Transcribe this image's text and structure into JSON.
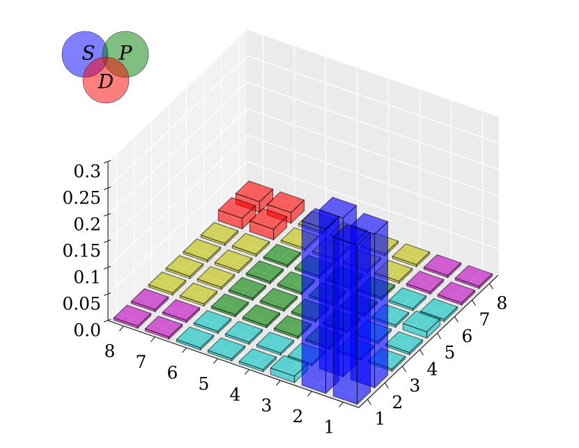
{
  "chart_data": {
    "type": "bar3d",
    "xticks": [
      1,
      2,
      3,
      4,
      5,
      6,
      7,
      8
    ],
    "yticks": [
      1,
      2,
      3,
      4,
      5,
      6,
      7,
      8
    ],
    "zlim": [
      0,
      0.3
    ],
    "zticks": [
      {
        "value": 0,
        "label": "0.0"
      },
      0.05,
      0.1,
      0.15,
      0.2,
      0.25,
      0.3
    ],
    "values": [
      [
        0.3,
        0.29,
        0.004,
        0.004,
        0.012,
        0.004,
        0.004,
        0.004
      ],
      [
        0.31,
        0.3,
        0.004,
        0.004,
        0.004,
        0.004,
        0.004,
        0.004
      ],
      [
        0.012,
        0.004,
        0.004,
        0.004,
        0.004,
        0.004,
        0.004,
        0.004
      ],
      [
        0.004,
        0.004,
        0.004,
        0.004,
        0.004,
        0.004,
        0.004,
        0.004
      ],
      [
        0.004,
        0.004,
        0.004,
        0.004,
        0.004,
        0.004,
        0.004,
        0.004
      ],
      [
        0.004,
        0.004,
        0.004,
        0.004,
        0.004,
        0.004,
        0.004,
        0.004
      ],
      [
        0.004,
        0.004,
        0.004,
        0.004,
        0.004,
        0.004,
        0.02,
        0.02
      ],
      [
        0.004,
        0.004,
        0.004,
        0.004,
        0.004,
        0.004,
        0.02,
        0.02
      ]
    ],
    "colors": [
      [
        "#0000ff",
        "#0000ff",
        "#00bfbf",
        "#00bfbf",
        "#00bfbf",
        "#00bfbf",
        "#bf00bf",
        "#bf00bf"
      ],
      [
        "#0000ff",
        "#0000ff",
        "#00bfbf",
        "#00bfbf",
        "#00bfbf",
        "#00bfbf",
        "#bf00bf",
        "#bf00bf"
      ],
      [
        "#00bfbf",
        "#00bfbf",
        "#008000",
        "#008000",
        "#008000",
        "#008000",
        "#bfbf00",
        "#bfbf00"
      ],
      [
        "#00bfbf",
        "#00bfbf",
        "#008000",
        "#008000",
        "#008000",
        "#008000",
        "#bfbf00",
        "#bfbf00"
      ],
      [
        "#00bfbf",
        "#00bfbf",
        "#008000",
        "#008000",
        "#008000",
        "#008000",
        "#bfbf00",
        "#bfbf00"
      ],
      [
        "#00bfbf",
        "#00bfbf",
        "#008000",
        "#008000",
        "#008000",
        "#008000",
        "#bfbf00",
        "#bfbf00"
      ],
      [
        "#bf00bf",
        "#bf00bf",
        "#bfbf00",
        "#bfbf00",
        "#bfbf00",
        "#bfbf00",
        "#ff0000",
        "#ff0000"
      ],
      [
        "#bf00bf",
        "#bf00bf",
        "#bfbf00",
        "#bfbf00",
        "#bfbf00",
        "#bfbf00",
        "#ff0000",
        "#ff0000"
      ]
    ],
    "legend": [
      {
        "name": "S",
        "color": "#0000ff"
      },
      {
        "name": "P",
        "color": "#008000"
      },
      {
        "name": "D",
        "color": "#ff0000"
      }
    ]
  }
}
